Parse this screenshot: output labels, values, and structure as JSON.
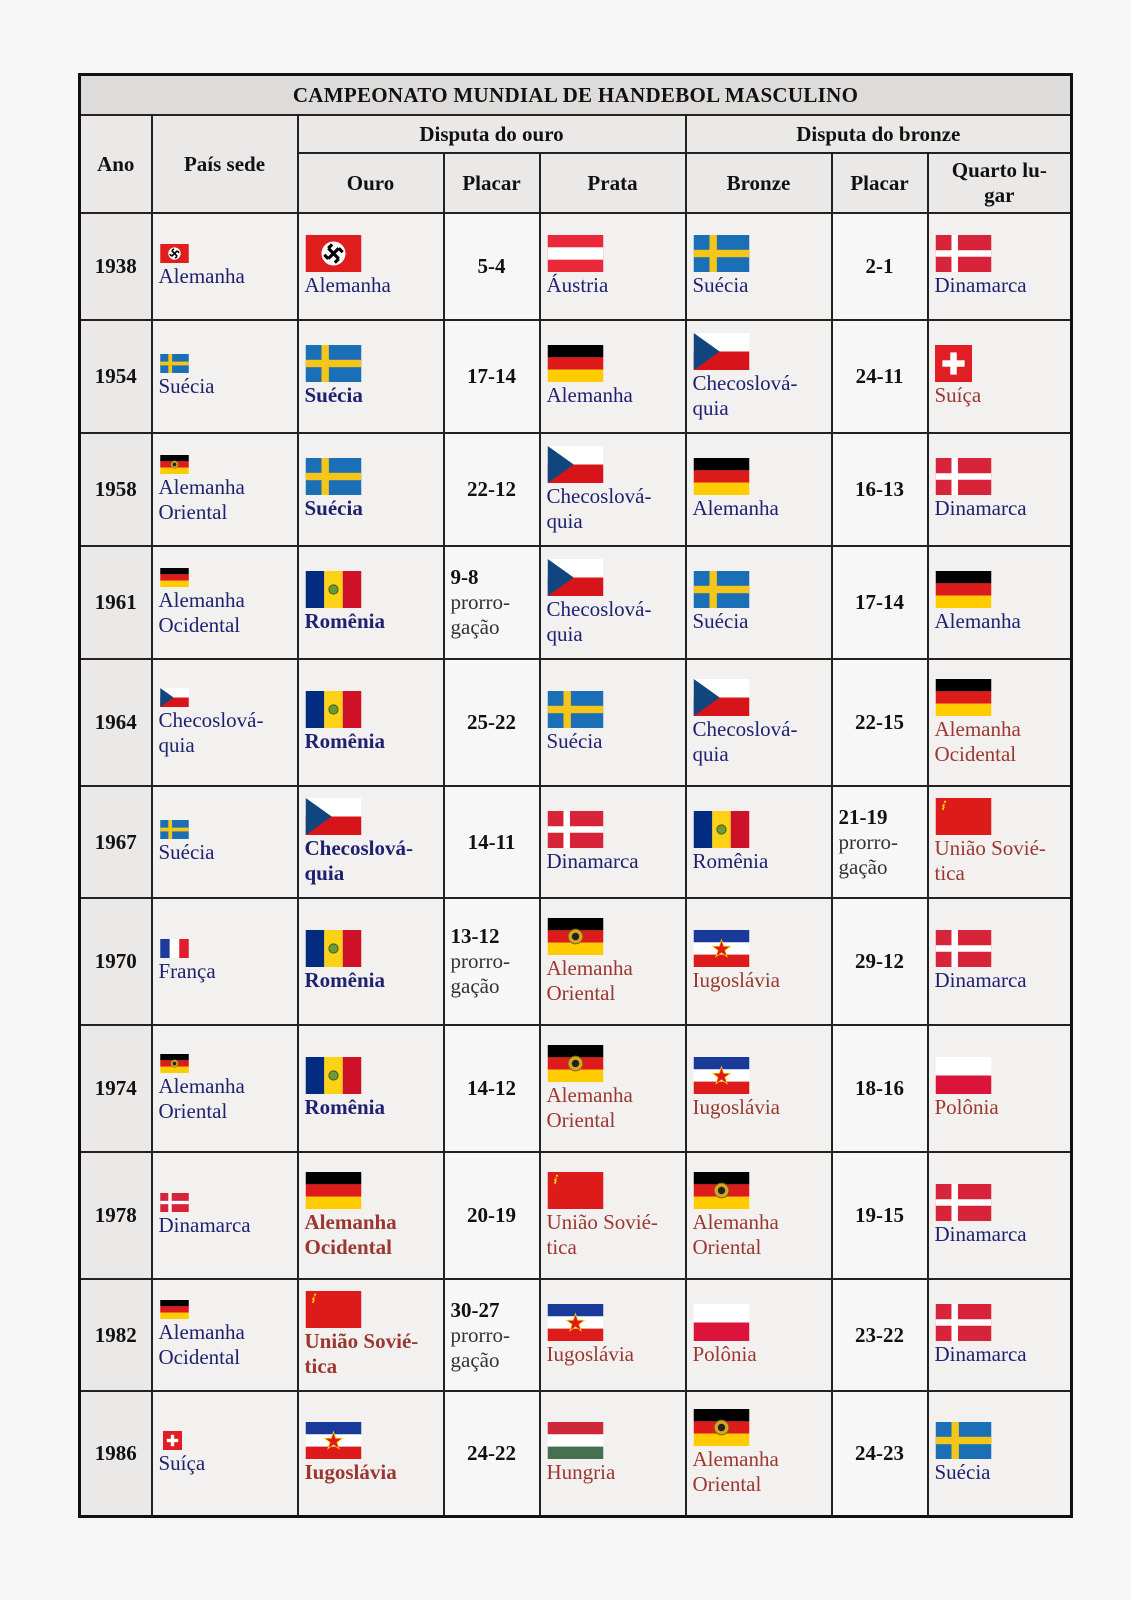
{
  "table": {
    "title": "CAMPEONATO MUNDIAL DE HANDEBOL MASCULINO",
    "headers": {
      "ano": "Ano",
      "pais_sede": "País sede",
      "disputa_ouro": "Disputa do ouro",
      "disputa_bronze": "Disputa do bronze",
      "ouro": "Ouro",
      "placar_ouro": "Placar",
      "prata": "Prata",
      "bronze": "Bronze",
      "placar_bronze": "Placar",
      "quarto": "Quarto lu-\ngar"
    },
    "rows": [
      {
        "year": "1938",
        "host": {
          "name": "Alemanha",
          "flag": "nazi-germany-flag"
        },
        "gold": {
          "name": "Alemanha",
          "flag": "nazi-germany-flag",
          "color": "#1f2170",
          "bold": false
        },
        "gold_score": "5-4",
        "gold_extra": "",
        "silver": {
          "name": "Áustria",
          "flag": "austria-flag",
          "color": "#1f2170",
          "bold": false
        },
        "bronze": {
          "name": "Suécia",
          "flag": "sweden-flag",
          "color": "#1f2170",
          "bold": false
        },
        "bronze_score": "2-1",
        "bronze_extra": "",
        "fourth": {
          "name": "Dinamarca",
          "flag": "denmark-flag",
          "color": "#1f2170",
          "bold": false
        }
      },
      {
        "year": "1954",
        "host": {
          "name": "Suécia",
          "flag": "sweden-flag"
        },
        "gold": {
          "name": "Suécia",
          "flag": "sweden-flag",
          "color": "#1f2170",
          "bold": true
        },
        "gold_score": "17-14",
        "gold_extra": "",
        "silver": {
          "name": "Alemanha",
          "flag": "germany-flag",
          "color": "#1f2170",
          "bold": false
        },
        "bronze": {
          "name": "Checoslová-\nquia",
          "flag": "czechoslovakia-flag",
          "color": "#1f2170",
          "bold": false
        },
        "bronze_score": "24-11",
        "bronze_extra": "",
        "fourth": {
          "name": "Suíça",
          "flag": "switzerland-flag",
          "color": "#9b3730",
          "bold": false
        }
      },
      {
        "year": "1958",
        "host": {
          "name": "Alemanha\nOriental",
          "flag": "east-germany-flag"
        },
        "gold": {
          "name": "Suécia",
          "flag": "sweden-flag",
          "color": "#1f2170",
          "bold": true
        },
        "gold_score": "22-12",
        "gold_extra": "",
        "silver": {
          "name": "Checoslová-\nquia",
          "flag": "czechoslovakia-flag",
          "color": "#1f2170",
          "bold": false
        },
        "bronze": {
          "name": "Alemanha",
          "flag": "germany-flag",
          "color": "#1f2170",
          "bold": false
        },
        "bronze_score": "16-13",
        "bronze_extra": "",
        "fourth": {
          "name": "Dinamarca",
          "flag": "denmark-flag",
          "color": "#1f2170",
          "bold": false
        }
      },
      {
        "year": "1961",
        "host": {
          "name": "Alemanha\nOcidental",
          "flag": "germany-flag"
        },
        "gold": {
          "name": "Romênia",
          "flag": "romania-flag",
          "color": "#1f2170",
          "bold": true
        },
        "gold_score": "9-8",
        "gold_extra": "prorro-\ngação",
        "silver": {
          "name": "Checoslová-\nquia",
          "flag": "czechoslovakia-flag",
          "color": "#1f2170",
          "bold": false
        },
        "bronze": {
          "name": "Suécia",
          "flag": "sweden-flag",
          "color": "#1f2170",
          "bold": false
        },
        "bronze_score": "17-14",
        "bronze_extra": "",
        "fourth": {
          "name": "Alemanha",
          "flag": "germany-flag",
          "color": "#1f2170",
          "bold": false
        }
      },
      {
        "year": "1964",
        "host": {
          "name": "Checoslová-\nquia",
          "flag": "czechoslovakia-flag"
        },
        "gold": {
          "name": "Romênia",
          "flag": "romania-flag",
          "color": "#1f2170",
          "bold": true
        },
        "gold_score": "25-22",
        "gold_extra": "",
        "silver": {
          "name": "Suécia",
          "flag": "sweden-flag",
          "color": "#1f2170",
          "bold": false
        },
        "bronze": {
          "name": "Checoslová-\nquia",
          "flag": "czechoslovakia-flag",
          "color": "#1f2170",
          "bold": false
        },
        "bronze_score": "22-15",
        "bronze_extra": "",
        "fourth": {
          "name": "Alemanha\nOcidental",
          "flag": "germany-flag",
          "color": "#9b3730",
          "bold": false
        }
      },
      {
        "year": "1967",
        "host": {
          "name": "Suécia",
          "flag": "sweden-flag"
        },
        "gold": {
          "name": "Checoslová-\nquia",
          "flag": "czechoslovakia-flag",
          "color": "#1f2170",
          "bold": true
        },
        "gold_score": "14-11",
        "gold_extra": "",
        "silver": {
          "name": "Dinamarca",
          "flag": "denmark-flag",
          "color": "#1f2170",
          "bold": false
        },
        "bronze": {
          "name": "Romênia",
          "flag": "romania-flag",
          "color": "#1f2170",
          "bold": false
        },
        "bronze_score": "21-19",
        "bronze_extra": "prorro-\ngação",
        "fourth": {
          "name": "União Sovié-\ntica",
          "flag": "soviet-union-flag",
          "color": "#9b3730",
          "bold": false
        }
      },
      {
        "year": "1970",
        "host": {
          "name": "França",
          "flag": "france-flag"
        },
        "gold": {
          "name": "Romênia",
          "flag": "romania-flag",
          "color": "#1f2170",
          "bold": true
        },
        "gold_score": "13-12",
        "gold_extra": "prorro-\ngação",
        "silver": {
          "name": "Alemanha\nOriental",
          "flag": "east-germany-flag",
          "color": "#9b3730",
          "bold": false
        },
        "bronze": {
          "name": "Iugoslávia",
          "flag": "yugoslavia-flag",
          "color": "#9b3730",
          "bold": false
        },
        "bronze_score": "29-12",
        "bronze_extra": "",
        "fourth": {
          "name": "Dinamarca",
          "flag": "denmark-flag",
          "color": "#1f2170",
          "bold": false
        }
      },
      {
        "year": "1974",
        "host": {
          "name": "Alemanha\nOriental",
          "flag": "east-germany-flag"
        },
        "gold": {
          "name": "Romênia",
          "flag": "romania-flag",
          "color": "#1f2170",
          "bold": true
        },
        "gold_score": "14-12",
        "gold_extra": "",
        "silver": {
          "name": "Alemanha\nOriental",
          "flag": "east-germany-flag",
          "color": "#9b3730",
          "bold": false
        },
        "bronze": {
          "name": "Iugoslávia",
          "flag": "yugoslavia-flag",
          "color": "#9b3730",
          "bold": false
        },
        "bronze_score": "18-16",
        "bronze_extra": "",
        "fourth": {
          "name": "Polônia",
          "flag": "poland-flag",
          "color": "#9b3730",
          "bold": false
        }
      },
      {
        "year": "1978",
        "host": {
          "name": "Dinamarca",
          "flag": "denmark-flag"
        },
        "gold": {
          "name": "Alemanha\nOcidental",
          "flag": "germany-flag",
          "color": "#9b3730",
          "bold": true
        },
        "gold_score": "20-19",
        "gold_extra": "",
        "silver": {
          "name": "União Sovié-\ntica",
          "flag": "soviet-union-flag",
          "color": "#9b3730",
          "bold": false
        },
        "bronze": {
          "name": "Alemanha\nOriental",
          "flag": "east-germany-flag",
          "color": "#9b3730",
          "bold": false
        },
        "bronze_score": "19-15",
        "bronze_extra": "",
        "fourth": {
          "name": "Dinamarca",
          "flag": "denmark-flag",
          "color": "#1f2170",
          "bold": false
        }
      },
      {
        "year": "1982",
        "host": {
          "name": "Alemanha\nOcidental",
          "flag": "germany-flag"
        },
        "gold": {
          "name": "União Sovié-\ntica",
          "flag": "soviet-union-flag",
          "color": "#9b3730",
          "bold": true
        },
        "gold_score": "30-27",
        "gold_extra": "prorro-\ngação",
        "silver": {
          "name": "Iugoslávia",
          "flag": "yugoslavia-flag",
          "color": "#9b3730",
          "bold": false
        },
        "bronze": {
          "name": "Polônia",
          "flag": "poland-flag",
          "color": "#9b3730",
          "bold": false
        },
        "bronze_score": "23-22",
        "bronze_extra": "",
        "fourth": {
          "name": "Dinamarca",
          "flag": "denmark-flag",
          "color": "#1f2170",
          "bold": false
        }
      },
      {
        "year": "1986",
        "host": {
          "name": "Suíça",
          "flag": "switzerland-flag"
        },
        "gold": {
          "name": "Iugoslávia",
          "flag": "yugoslavia-flag",
          "color": "#9b3730",
          "bold": true
        },
        "gold_score": "24-22",
        "gold_extra": "",
        "silver": {
          "name": "Hungria",
          "flag": "hungary-flag",
          "color": "#9b3730",
          "bold": false
        },
        "bronze": {
          "name": "Alemanha\nOriental",
          "flag": "east-germany-flag",
          "color": "#9b3730",
          "bold": false
        },
        "bronze_score": "24-23",
        "bronze_extra": "",
        "fourth": {
          "name": "Suécia",
          "flag": "sweden-flag",
          "color": "#1f2170",
          "bold": false
        }
      }
    ]
  }
}
